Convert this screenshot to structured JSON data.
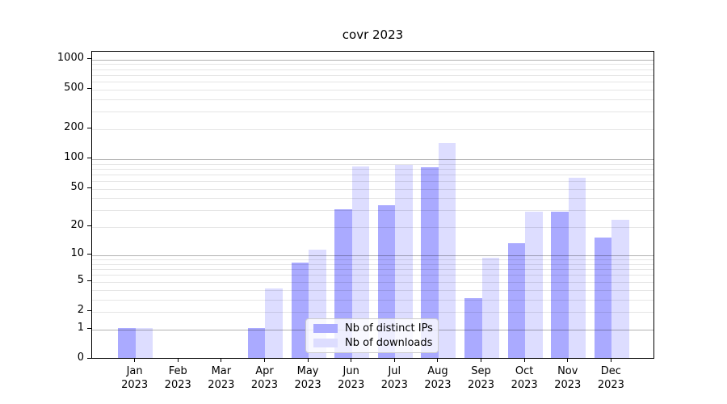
{
  "chart_data": {
    "type": "bar",
    "title": "covr 2023",
    "categories": [
      "Jan",
      "Feb",
      "Mar",
      "Apr",
      "May",
      "Jun",
      "Jul",
      "Aug",
      "Sep",
      "Oct",
      "Nov",
      "Dec"
    ],
    "year": "2023",
    "series": [
      {
        "key": "distinct-ips",
        "name": "Nb of distinct IPs",
        "color": "#aaaaff",
        "values": [
          1,
          0,
          0,
          1,
          8,
          30,
          33,
          80,
          3,
          13,
          28,
          15
        ]
      },
      {
        "key": "downloads",
        "name": "Nb of downloads",
        "color": "#ddddff",
        "values": [
          1,
          0,
          0,
          4,
          11,
          81,
          84,
          140,
          9,
          28,
          62,
          23
        ]
      }
    ],
    "xlabel": "",
    "ylabel": "",
    "yscale": "log1p",
    "ylim": [
      0,
      1200
    ],
    "yticks": [
      0,
      1,
      2,
      5,
      10,
      20,
      50,
      100,
      200,
      500,
      1000
    ],
    "grid": "on",
    "legend_position": "lower center"
  }
}
